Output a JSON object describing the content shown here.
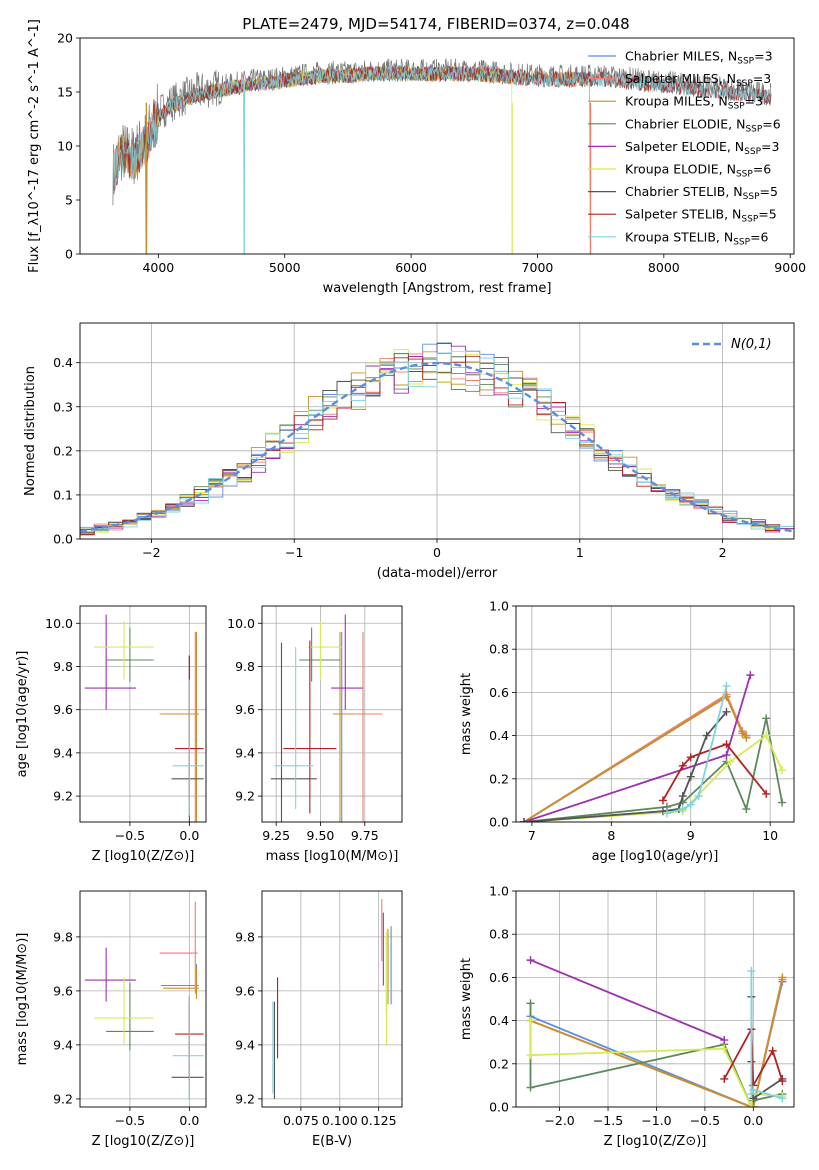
{
  "colors": {
    "Chabrier MILES": "#5b8ee0",
    "Salpeter MILES": "#f07f6a",
    "Kroupa MILES": "#c8902a",
    "Chabrier ELODIE": "#5a8a5a",
    "Salpeter ELODIE": "#9c30b0",
    "Kroupa ELODIE": "#d6ea55",
    "Chabrier STELIB": "#555555",
    "Salpeter STELIB": "#b22222",
    "Kroupa STELIB": "#7fd4df"
  },
  "chart_data": [
    {
      "id": "spectrum",
      "type": "line",
      "title": "PLATE=2479, MJD=54174, FIBERID=0374, z=0.048",
      "xlabel": "wavelength [Angstrom, rest frame]",
      "ylabel": "Flux [f_λ10^-17 erg cm^-2 s^-1 A^-1]",
      "xlim": [
        3380,
        9030
      ],
      "ylim": [
        0,
        20
      ],
      "xticks": [
        4000,
        5000,
        6000,
        7000,
        8000,
        9000
      ],
      "yticks": [
        0,
        5,
        10,
        15,
        20
      ],
      "legend": "right",
      "legend_entries": [
        {
          "name": "Chabrier MILES",
          "nssp": "3"
        },
        {
          "name": "Salpeter MILES",
          "nssp": "3"
        },
        {
          "name": "Kroupa MILES",
          "nssp": "3"
        },
        {
          "name": "Chabrier ELODIE",
          "nssp": "6"
        },
        {
          "name": "Salpeter ELODIE",
          "nssp": "3"
        },
        {
          "name": "Kroupa ELODIE",
          "nssp": "6"
        },
        {
          "name": "Chabrier STELIB",
          "nssp": "5"
        },
        {
          "name": "Salpeter STELIB",
          "nssp": "5"
        },
        {
          "name": "Kroupa STELIB",
          "nssp": "6"
        }
      ],
      "data_envelope": {
        "x": [
          3640,
          3700,
          3800,
          3900,
          4000,
          4100,
          4300,
          4500,
          4700,
          4900,
          5100,
          5300,
          5500,
          5700,
          5900,
          6100,
          6300,
          6500,
          6700,
          6900,
          7100,
          7300,
          7500,
          7700,
          7900,
          8100,
          8300,
          8500,
          8700,
          8850
        ],
        "y": [
          7.5,
          9.5,
          9.0,
          10.5,
          13.0,
          14.0,
          15.0,
          15.5,
          16.0,
          16.2,
          16.5,
          16.8,
          16.8,
          17.0,
          17.0,
          17.0,
          17.0,
          17.0,
          16.8,
          16.6,
          16.5,
          16.5,
          16.5,
          16.3,
          16.0,
          15.8,
          15.5,
          15.3,
          15.0,
          14.8
        ]
      },
      "dropouts": [
        {
          "model": "Kroupa MILES",
          "x": 3905
        },
        {
          "model": "Kroupa STELIB",
          "x": 4680
        },
        {
          "model": "Kroupa ELODIE",
          "x": 6800
        },
        {
          "model": "Salpeter MILES",
          "x": 7420
        }
      ]
    },
    {
      "id": "residuals",
      "type": "histogram",
      "xlabel": "(data-model)/error",
      "ylabel": "Normed distribution",
      "xlim": [
        -2.5,
        2.5
      ],
      "ylim": [
        0,
        0.49
      ],
      "xticks": [
        -2,
        -1,
        0,
        1,
        2
      ],
      "yticks": [
        0.0,
        0.1,
        0.2,
        0.3,
        0.4
      ],
      "bin_width": 0.1,
      "legend": "top-right",
      "reference": {
        "name": "N(0,1)",
        "mu": 0,
        "sigma": 1
      }
    },
    {
      "id": "age-vs-Z",
      "type": "errorbar",
      "xlabel": "Z [log10(Z/Z⊙)]",
      "ylabel": "age  [log10(age/yr)]",
      "xlim": [
        -0.92,
        0.14
      ],
      "ylim": [
        9.08,
        10.08
      ],
      "xticks": [
        -0.5,
        0.0
      ],
      "yticks": [
        9.2,
        9.4,
        9.6,
        9.8,
        10.0
      ],
      "points": [
        {
          "model": "Chabrier MILES",
          "x": 0.06,
          "y": 9.58,
          "xerr": [
            0.3,
            0.02
          ],
          "yerr": [
            0.55,
            0.38
          ]
        },
        {
          "model": "Salpeter MILES",
          "x": 0.05,
          "y": 9.58,
          "xerr": [
            0.3,
            0.02
          ],
          "yerr": [
            0.55,
            0.38
          ]
        },
        {
          "model": "Kroupa MILES",
          "x": 0.06,
          "y": 9.58,
          "xerr": [
            0.28,
            0.02
          ],
          "yerr": [
            0.55,
            0.38
          ]
        },
        {
          "model": "Chabrier ELODIE",
          "x": -0.5,
          "y": 9.83,
          "xerr": [
            0.2,
            0.2
          ],
          "yerr": [
            0.1,
            0.15
          ]
        },
        {
          "model": "Salpeter ELODIE",
          "x": -0.7,
          "y": 9.7,
          "xerr": [
            0.18,
            0.25
          ],
          "yerr": [
            0.1,
            0.34
          ]
        },
        {
          "model": "Kroupa ELODIE",
          "x": -0.55,
          "y": 9.89,
          "xerr": [
            0.25,
            0.25
          ],
          "yerr": [
            0.15,
            0.12
          ]
        },
        {
          "model": "Chabrier STELIB",
          "x": 0.0,
          "y": 9.28,
          "xerr": [
            0.15,
            0.12
          ],
          "yerr": [
            0.22,
            0.57
          ]
        },
        {
          "model": "Salpeter STELIB",
          "x": 0.0,
          "y": 9.42,
          "xerr": [
            0.12,
            0.12
          ],
          "yerr": [
            0.24,
            0.43
          ]
        },
        {
          "model": "Kroupa STELIB",
          "x": 0.0,
          "y": 9.34,
          "xerr": [
            0.14,
            0.12
          ],
          "yerr": [
            0.23,
            0.4
          ]
        }
      ]
    },
    {
      "id": "age-vs-mass",
      "type": "errorbar",
      "xlabel": "mass [log10(M/M⊙)]",
      "xlim": [
        9.17,
        9.96
      ],
      "ylim": [
        9.08,
        10.08
      ],
      "xticks": [
        9.25,
        9.5,
        9.75
      ],
      "yticks": [
        9.2,
        9.4,
        9.6,
        9.8,
        10.0
      ],
      "points": [
        {
          "model": "Chabrier MILES",
          "x": 9.62,
          "y": 9.58,
          "xerr": [
            0.04,
            0.08
          ],
          "yerr": [
            0.55,
            0.38
          ]
        },
        {
          "model": "Salpeter MILES",
          "x": 9.74,
          "y": 9.58,
          "xerr": [
            0.15,
            0.11
          ],
          "yerr": [
            0.55,
            0.38
          ]
        },
        {
          "model": "Kroupa MILES",
          "x": 9.61,
          "y": 9.58,
          "xerr": [
            0.04,
            0.08
          ],
          "yerr": [
            0.55,
            0.38
          ]
        },
        {
          "model": "Chabrier ELODIE",
          "x": 9.45,
          "y": 9.83,
          "xerr": [
            0.07,
            0.16
          ],
          "yerr": [
            0.1,
            0.15
          ]
        },
        {
          "model": "Salpeter ELODIE",
          "x": 9.64,
          "y": 9.7,
          "xerr": [
            0.08,
            0.1
          ],
          "yerr": [
            0.1,
            0.34
          ]
        },
        {
          "model": "Kroupa ELODIE",
          "x": 9.5,
          "y": 9.89,
          "xerr": [
            0.07,
            0.12
          ],
          "yerr": [
            0.15,
            0.12
          ]
        },
        {
          "model": "Chabrier STELIB",
          "x": 9.28,
          "y": 9.28,
          "xerr": [
            0.06,
            0.2
          ],
          "yerr": [
            0.2,
            0.63
          ]
        },
        {
          "model": "Salpeter STELIB",
          "x": 9.44,
          "y": 9.42,
          "xerr": [
            0.15,
            0.15
          ],
          "yerr": [
            0.3,
            0.5
          ]
        },
        {
          "model": "Kroupa STELIB",
          "x": 9.36,
          "y": 9.34,
          "xerr": [
            0.12,
            0.1
          ],
          "yerr": [
            0.2,
            0.55
          ]
        }
      ]
    },
    {
      "id": "weight-vs-age",
      "type": "line",
      "xlabel": "age  [log10(age/yr)]",
      "ylabel": "mass weight",
      "xlim": [
        6.8,
        10.3
      ],
      "ylim": [
        0,
        1
      ],
      "xticks": [
        7,
        8,
        9,
        10
      ],
      "yticks": [
        0.0,
        0.2,
        0.4,
        0.6,
        0.8,
        1.0
      ],
      "series": [
        {
          "model": "Chabrier MILES",
          "x": [
            6.9,
            9.45,
            9.65,
            9.7
          ],
          "y": [
            0.0,
            0.58,
            0.42,
            0.4
          ]
        },
        {
          "model": "Salpeter MILES",
          "x": [
            6.9,
            9.45,
            9.65,
            9.7
          ],
          "y": [
            0.0,
            0.59,
            0.42,
            0.4
          ]
        },
        {
          "model": "Kroupa MILES",
          "x": [
            6.9,
            9.45,
            9.65,
            9.7
          ],
          "y": [
            0.0,
            0.58,
            0.41,
            0.39
          ]
        },
        {
          "model": "Chabrier ELODIE",
          "x": [
            6.9,
            8.7,
            8.9,
            9.45,
            9.7,
            9.95,
            10.15
          ],
          "y": [
            0.0,
            0.07,
            0.09,
            0.28,
            0.06,
            0.48,
            0.09
          ]
        },
        {
          "model": "Salpeter ELODIE",
          "x": [
            6.9,
            9.45,
            9.75
          ],
          "y": [
            0.0,
            0.31,
            0.68
          ]
        },
        {
          "model": "Kroupa ELODIE",
          "x": [
            6.9,
            8.9,
            9.5,
            9.95,
            10.15
          ],
          "y": [
            0.0,
            0.05,
            0.28,
            0.4,
            0.24
          ]
        },
        {
          "model": "Chabrier STELIB",
          "x": [
            6.9,
            8.65,
            8.85,
            8.9,
            9.0,
            9.2,
            9.45
          ],
          "y": [
            0.0,
            0.05,
            0.06,
            0.12,
            0.21,
            0.4,
            0.51
          ]
        },
        {
          "model": "Salpeter STELIB",
          "x": [
            8.65,
            8.9,
            9.0,
            9.45,
            9.95
          ],
          "y": [
            0.1,
            0.26,
            0.3,
            0.36,
            0.13
          ]
        },
        {
          "model": "Kroupa STELIB",
          "x": [
            8.7,
            8.9,
            9.0,
            9.1,
            9.45
          ],
          "y": [
            0.04,
            0.06,
            0.08,
            0.12,
            0.63
          ]
        }
      ]
    },
    {
      "id": "mass-vs-Z",
      "type": "errorbar",
      "xlabel": "Z [log10(Z/Z⊙)]",
      "ylabel": "mass [log10(M/M⊙)]",
      "xlim": [
        -0.92,
        0.14
      ],
      "ylim": [
        9.17,
        9.97
      ],
      "xticks": [
        -0.5,
        0.0
      ],
      "yticks": [
        9.2,
        9.4,
        9.6,
        9.8
      ],
      "points": [
        {
          "model": "Chabrier MILES",
          "x": 0.06,
          "y": 9.62,
          "xerr": [
            0.3,
            0.02
          ],
          "yerr": [
            0.04,
            0.08
          ]
        },
        {
          "model": "Salpeter MILES",
          "x": 0.05,
          "y": 9.74,
          "xerr": [
            0.3,
            0.02
          ],
          "yerr": [
            0.15,
            0.19
          ]
        },
        {
          "model": "Kroupa MILES",
          "x": 0.06,
          "y": 9.61,
          "xerr": [
            0.28,
            0.02
          ],
          "yerr": [
            0.04,
            0.08
          ]
        },
        {
          "model": "Chabrier ELODIE",
          "x": -0.5,
          "y": 9.45,
          "xerr": [
            0.2,
            0.2
          ],
          "yerr": [
            0.07,
            0.18
          ]
        },
        {
          "model": "Salpeter ELODIE",
          "x": -0.7,
          "y": 9.64,
          "xerr": [
            0.18,
            0.25
          ],
          "yerr": [
            0.08,
            0.12
          ]
        },
        {
          "model": "Kroupa ELODIE",
          "x": -0.55,
          "y": 9.5,
          "xerr": [
            0.25,
            0.25
          ],
          "yerr": [
            0.1,
            0.15
          ]
        },
        {
          "model": "Chabrier STELIB",
          "x": 0.0,
          "y": 9.28,
          "xerr": [
            0.15,
            0.12
          ],
          "yerr": [
            0.08,
            0.28
          ]
        },
        {
          "model": "Salpeter STELIB",
          "x": 0.0,
          "y": 9.44,
          "xerr": [
            0.12,
            0.12
          ],
          "yerr": [
            0.17,
            0.14
          ]
        },
        {
          "model": "Kroupa STELIB",
          "x": 0.0,
          "y": 9.36,
          "xerr": [
            0.14,
            0.12
          ],
          "yerr": [
            0.16,
            0.22
          ]
        }
      ]
    },
    {
      "id": "mass-vs-EBV",
      "type": "errorbar",
      "xlabel": "E(B-V)",
      "xlim": [
        0.05,
        0.14
      ],
      "ylim": [
        9.17,
        9.97
      ],
      "xticks": [
        0.075,
        0.1,
        0.125
      ],
      "yticks": [
        9.2,
        9.4,
        9.6,
        9.8
      ],
      "points": [
        {
          "model": "Chabrier MILES",
          "x": 0.133,
          "y": 9.69,
          "yerr": [
            0.14,
            0.15
          ]
        },
        {
          "model": "Salpeter MILES",
          "x": 0.127,
          "y": 9.8,
          "yerr": [
            0.09,
            0.14
          ]
        },
        {
          "model": "Kroupa MILES",
          "x": 0.131,
          "y": 9.69,
          "yerr": [
            0.14,
            0.14
          ]
        },
        {
          "model": "Chabrier ELODIE",
          "x": 0.13,
          "y": 9.6,
          "yerr": [
            0.08,
            0.2
          ]
        },
        {
          "model": "Salpeter ELODIE",
          "x": 0.128,
          "y": 9.74,
          "yerr": [
            0.12,
            0.15
          ]
        },
        {
          "model": "Kroupa ELODIE",
          "x": 0.13,
          "y": 9.55,
          "yerr": [
            0.15,
            0.27
          ]
        },
        {
          "model": "Chabrier STELIB",
          "x": 0.058,
          "y": 9.38,
          "yerr": [
            0.18,
            0.18
          ]
        },
        {
          "model": "Salpeter STELIB",
          "x": 0.06,
          "y": 9.5,
          "yerr": [
            0.15,
            0.15
          ]
        },
        {
          "model": "Kroupa STELIB",
          "x": 0.057,
          "y": 9.38,
          "yerr": [
            0.16,
            0.18
          ]
        }
      ]
    },
    {
      "id": "weight-vs-Z",
      "type": "line",
      "xlabel": "Z [log10(Z/Z⊙)]",
      "ylabel": "mass weight",
      "xlim": [
        -2.45,
        0.42
      ],
      "ylim": [
        0,
        1
      ],
      "xticks": [
        -2.0,
        -1.5,
        -1.0,
        -0.5,
        0.0
      ],
      "yticks": [
        0.0,
        0.2,
        0.4,
        0.6,
        0.8,
        1.0
      ],
      "series": [
        {
          "model": "Chabrier MILES",
          "x": [
            -2.3,
            -0.02,
            0.0,
            0.3
          ],
          "y": [
            0.42,
            0.0,
            0.0,
            0.58
          ]
        },
        {
          "model": "Salpeter MILES",
          "x": [
            -2.3,
            -0.02,
            0.0,
            0.3
          ],
          "y": [
            0.4,
            0.0,
            0.0,
            0.59
          ]
        },
        {
          "model": "Kroupa MILES",
          "x": [
            -2.3,
            -0.02,
            0.0,
            0.3
          ],
          "y": [
            0.4,
            0.0,
            0.0,
            0.6
          ]
        },
        {
          "model": "Chabrier ELODIE",
          "x": [
            -2.3,
            -2.3,
            -0.3,
            -0.02,
            0.0,
            0.3
          ],
          "y": [
            0.48,
            0.09,
            0.29,
            0.0,
            0.03,
            0.06
          ]
        },
        {
          "model": "Salpeter ELODIE",
          "x": [
            -2.3,
            -0.3
          ],
          "y": [
            0.68,
            0.31
          ]
        },
        {
          "model": "Kroupa ELODIE",
          "x": [
            -2.3,
            -2.3,
            -0.3,
            -0.02,
            0.0,
            0.3
          ],
          "y": [
            0.4,
            0.24,
            0.27,
            0.0,
            0.06,
            0.05
          ]
        },
        {
          "model": "Chabrier STELIB",
          "x": [
            -0.02,
            -0.02,
            0.0,
            0.3
          ],
          "y": [
            0.51,
            0.21,
            0.04,
            0.13
          ]
        },
        {
          "model": "Salpeter STELIB",
          "x": [
            -0.3,
            -0.02,
            0.0,
            0.2,
            0.3
          ],
          "y": [
            0.13,
            0.36,
            0.1,
            0.26,
            0.12
          ]
        },
        {
          "model": "Kroupa STELIB",
          "x": [
            -0.02,
            -0.02,
            0.0,
            0.3
          ],
          "y": [
            0.63,
            0.06,
            0.08,
            0.04
          ]
        }
      ]
    }
  ]
}
